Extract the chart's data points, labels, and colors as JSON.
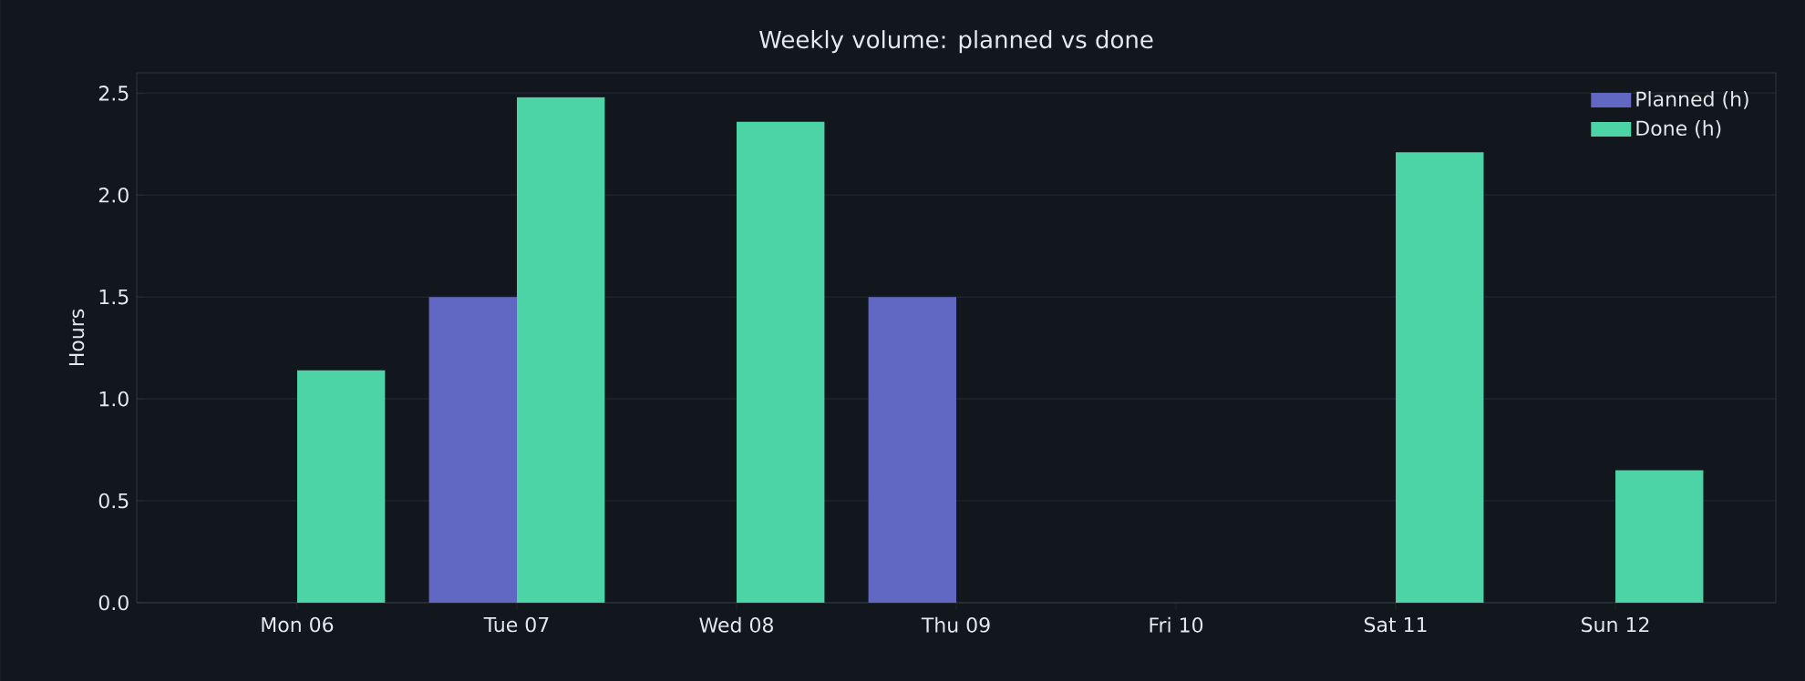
{
  "chart_data": {
    "type": "bar",
    "title": "Weekly volume: planned vs done",
    "ylabel": "Hours",
    "categories": [
      "Mon 06",
      "Tue 07",
      "Wed 08",
      "Thu 09",
      "Fri 10",
      "Sat 11",
      "Sun 12"
    ],
    "series": [
      {
        "name": "Planned (h)",
        "color": "#6068c4",
        "values": [
          0,
          1.5,
          0,
          1.5,
          0,
          0,
          0
        ]
      },
      {
        "name": "Done (h)",
        "color": "#4cd3a6",
        "values": [
          1.14,
          2.48,
          2.36,
          0,
          0,
          2.21,
          0.65
        ]
      }
    ],
    "ylim": [
      0,
      2.6
    ],
    "yticks": [
      {
        "value": 0,
        "label": "0.0"
      },
      0.5,
      {
        "value": 1,
        "label": "1.0"
      },
      1.5,
      {
        "value": 2,
        "label": "2.0"
      },
      2.5
    ],
    "grid": "y",
    "legend": "top right"
  }
}
